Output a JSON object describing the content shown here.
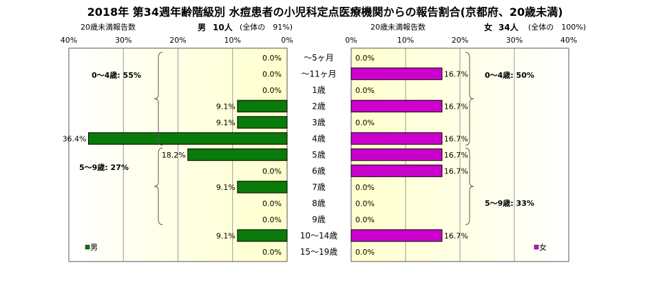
{
  "title": "2018年 第34週年齢階級別 水痘患者の小児科定点医療機関からの報告割合(京都府、20歳未満)",
  "left_panel": {
    "axis_label": "20歳未満報告数",
    "sex": "男",
    "count": "10人",
    "share": "(全体の　91%)",
    "legend": "男",
    "bracket_labels": [
      "0～4歳: 55%",
      "5～9歳: 27%"
    ]
  },
  "right_panel": {
    "axis_label": "20歳未満報告数",
    "sex": "女",
    "count": "34人",
    "share": "(全体の　100%)",
    "legend": "女",
    "bracket_labels": [
      "0～4歳: 50%",
      "5～9歳: 33%"
    ]
  },
  "colors": {
    "male": "#0a7a0a",
    "female": "#cc00cc",
    "panel_fill": "#ffffcc",
    "panel_fill_edge": "#ffffff"
  },
  "chart_data": {
    "type": "bar",
    "orientation": "horizontal-butterfly",
    "categories": [
      "～5ヶ月",
      "～11ヶ月",
      "1歳",
      "2歳",
      "3歳",
      "4歳",
      "5歳",
      "6歳",
      "7歳",
      "8歳",
      "9歳",
      "10～14歳",
      "15～19歳"
    ],
    "series": [
      {
        "name": "男",
        "values": [
          0,
          0,
          0,
          9.1,
          9.1,
          36.4,
          18.2,
          0,
          9.1,
          0,
          0,
          9.1,
          0
        ],
        "labels": [
          "0.0%",
          "0.0%",
          "0.0%",
          "9.1%",
          "9.1%",
          "36.4%",
          "18.2%",
          "0.0%",
          "9.1%",
          "0.0%",
          "0.0%",
          "9.1%",
          "0.0%"
        ]
      },
      {
        "name": "女",
        "values": [
          0,
          16.7,
          0,
          16.7,
          0,
          16.7,
          16.7,
          16.7,
          0,
          0,
          0,
          16.7,
          0
        ],
        "labels": [
          "0.0%",
          "16.7%",
          "0.0%",
          "16.7%",
          "0.0%",
          "16.7%",
          "16.7%",
          "16.7%",
          "0.0%",
          "0.0%",
          "0.0%",
          "16.7%",
          "0.0%"
        ]
      }
    ],
    "xlim": [
      0,
      40
    ],
    "ticks": [
      "0%",
      "10%",
      "20%",
      "30%",
      "40%"
    ],
    "grid": true,
    "legend_position": "bottom"
  }
}
